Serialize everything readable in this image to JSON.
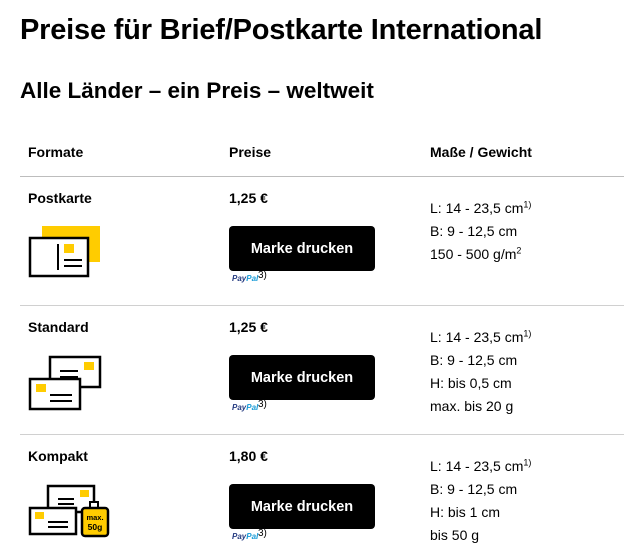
{
  "title": "Preise für Brief/Postkarte International",
  "subtitle": "Alle Länder – ein Preis – weltweit",
  "columns": {
    "formate": "Formate",
    "preise": "Preise",
    "masse": "Maße / Gewicht"
  },
  "rows": [
    {
      "format": "Postkarte",
      "price": "1,25 €",
      "button": "Marke drucken",
      "paypal_a": "Pay",
      "paypal_b": "Pal",
      "footnote": "3)",
      "specs": [
        {
          "text": "L: 14 - 23,5 cm",
          "sup": "1)"
        },
        {
          "text": "B: 9 - 12,5 cm",
          "sup": ""
        },
        {
          "text": "150 - 500 g/m",
          "sup": "2"
        }
      ],
      "icon": "postcard-icon"
    },
    {
      "format": "Standard",
      "price": "1,25 €",
      "button": "Marke drucken",
      "paypal_a": "Pay",
      "paypal_b": "Pal",
      "footnote": "3)",
      "specs": [
        {
          "text": "L: 14 - 23,5 cm",
          "sup": "1)"
        },
        {
          "text": "B: 9 - 12,5 cm",
          "sup": ""
        },
        {
          "text": "H: bis 0,5 cm",
          "sup": ""
        },
        {
          "text": "max. bis 20 g",
          "sup": ""
        }
      ],
      "icon": "envelopes-icon"
    },
    {
      "format": "Kompakt",
      "price": "1,80 €",
      "button": "Marke drucken",
      "paypal_a": "Pay",
      "paypal_b": "Pal",
      "footnote": "3)",
      "specs": [
        {
          "text": "L: 14 - 23,5 cm",
          "sup": "1)"
        },
        {
          "text": "B: 9 - 12,5 cm",
          "sup": ""
        },
        {
          "text": "H: bis 1 cm",
          "sup": ""
        },
        {
          "text": "bis 50 g",
          "sup": ""
        }
      ],
      "icon": "envelopes-weight-icon",
      "weight_label_1": "max.",
      "weight_label_2": "50g"
    }
  ],
  "colors": {
    "accent": "#ffcc00",
    "button": "#000000"
  }
}
